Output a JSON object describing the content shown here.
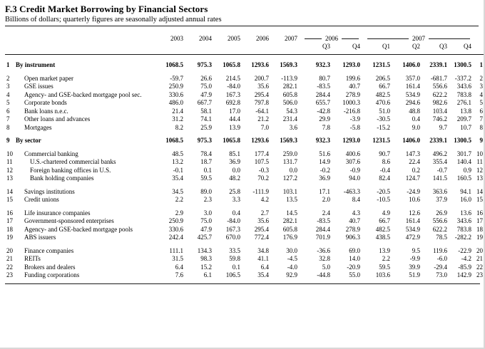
{
  "header": {
    "title": "F.3 Credit Market Borrowing by Financial Sectors",
    "subtitle": "Billions of dollars; quarterly figures are seasonally adjusted annual rates"
  },
  "table": {
    "year_columns": [
      "2003",
      "2004",
      "2005",
      "2006",
      "2007"
    ],
    "quarter_groups": [
      {
        "year": "2006",
        "quarters": [
          "Q3",
          "Q4"
        ]
      },
      {
        "year": "2007",
        "quarters": [
          "Q1",
          "Q2",
          "Q3",
          "Q4"
        ]
      }
    ],
    "rows": [
      {
        "num": 1,
        "label": "By instrument",
        "indent": 0,
        "bold": true,
        "gap_before": false,
        "values": [
          "1068.5",
          "975.3",
          "1065.8",
          "1293.6",
          "1569.3",
          "932.3",
          "1293.0",
          "1231.5",
          "1406.0",
          "2339.1",
          "1300.5"
        ]
      },
      {
        "num": 2,
        "label": "Open market paper",
        "indent": 1,
        "bold": false,
        "gap_before": true,
        "values": [
          "-59.7",
          "26.6",
          "214.5",
          "200.7",
          "-113.9",
          "80.7",
          "199.6",
          "206.5",
          "357.0",
          "-681.7",
          "-337.2"
        ]
      },
      {
        "num": 3,
        "label": "GSE issues",
        "indent": 1,
        "bold": false,
        "gap_before": false,
        "values": [
          "250.9",
          "75.0",
          "-84.0",
          "35.6",
          "282.1",
          "-83.5",
          "40.7",
          "66.7",
          "161.4",
          "556.6",
          "343.6"
        ]
      },
      {
        "num": 4,
        "label": "Agency- and GSE-backed mortgage pool sec.",
        "indent": 1,
        "bold": false,
        "gap_before": false,
        "values": [
          "330.6",
          "47.9",
          "167.3",
          "295.4",
          "605.8",
          "284.4",
          "278.9",
          "482.5",
          "534.9",
          "622.2",
          "783.8"
        ]
      },
      {
        "num": 5,
        "label": "Corporate bonds",
        "indent": 1,
        "bold": false,
        "gap_before": false,
        "values": [
          "486.0",
          "667.7",
          "692.8",
          "797.8",
          "506.0",
          "655.7",
          "1000.3",
          "470.6",
          "294.6",
          "982.6",
          "276.1"
        ]
      },
      {
        "num": 6,
        "label": "Bank loans n.e.c.",
        "indent": 1,
        "bold": false,
        "gap_before": false,
        "values": [
          "21.4",
          "58.1",
          "17.0",
          "-64.1",
          "54.3",
          "-42.8",
          "-216.8",
          "51.0",
          "48.8",
          "103.4",
          "13.8"
        ]
      },
      {
        "num": 7,
        "label": "Other loans and advances",
        "indent": 1,
        "bold": false,
        "gap_before": false,
        "values": [
          "31.2",
          "74.1",
          "44.4",
          "21.2",
          "231.4",
          "29.9",
          "-3.9",
          "-30.5",
          "0.4",
          "746.2",
          "209.7"
        ]
      },
      {
        "num": 8,
        "label": "Mortgages",
        "indent": 1,
        "bold": false,
        "gap_before": false,
        "values": [
          "8.2",
          "25.9",
          "13.9",
          "7.0",
          "3.6",
          "7.8",
          "-5.8",
          "-15.2",
          "9.0",
          "9.7",
          "10.7"
        ]
      },
      {
        "num": 9,
        "label": "By sector",
        "indent": 0,
        "bold": true,
        "gap_before": true,
        "values": [
          "1068.5",
          "975.3",
          "1065.8",
          "1293.6",
          "1569.3",
          "932.3",
          "1293.0",
          "1231.5",
          "1406.0",
          "2339.1",
          "1300.5"
        ]
      },
      {
        "num": 10,
        "label": "Commercial banking",
        "indent": 1,
        "bold": false,
        "gap_before": true,
        "values": [
          "48.5",
          "78.4",
          "85.1",
          "177.4",
          "259.0",
          "51.6",
          "400.6",
          "90.7",
          "147.3",
          "496.2",
          "301.7"
        ]
      },
      {
        "num": 11,
        "label": "U.S.-chartered commercial banks",
        "indent": 2,
        "bold": false,
        "gap_before": false,
        "values": [
          "13.2",
          "18.7",
          "36.9",
          "107.5",
          "131.7",
          "14.9",
          "307.6",
          "8.6",
          "22.4",
          "355.4",
          "140.4"
        ]
      },
      {
        "num": 12,
        "label": "Foreign banking offices in U.S.",
        "indent": 2,
        "bold": false,
        "gap_before": false,
        "values": [
          "-0.1",
          "0.1",
          "0.0",
          "-0.3",
          "0.0",
          "-0.2",
          "-0.9",
          "-0.4",
          "0.2",
          "-0.7",
          "0.9"
        ]
      },
      {
        "num": 13,
        "label": "Bank holding companies",
        "indent": 2,
        "bold": false,
        "gap_before": false,
        "values": [
          "35.4",
          "59.5",
          "48.2",
          "70.2",
          "127.2",
          "36.9",
          "94.0",
          "82.4",
          "124.7",
          "141.5",
          "160.5"
        ]
      },
      {
        "num": 14,
        "label": "Savings institutions",
        "indent": 1,
        "bold": false,
        "gap_before": true,
        "values": [
          "34.5",
          "89.0",
          "25.8",
          "-111.9",
          "103.1",
          "17.1",
          "-463.3",
          "-20.5",
          "-24.9",
          "363.6",
          "94.1"
        ]
      },
      {
        "num": 15,
        "label": "Credit unions",
        "indent": 1,
        "bold": false,
        "gap_before": false,
        "values": [
          "2.2",
          "2.3",
          "3.3",
          "4.2",
          "13.5",
          "2.0",
          "8.4",
          "-10.5",
          "10.6",
          "37.9",
          "16.0"
        ]
      },
      {
        "num": 16,
        "label": "Life insurance companies",
        "indent": 1,
        "bold": false,
        "gap_before": true,
        "values": [
          "2.9",
          "3.0",
          "0.4",
          "2.7",
          "14.5",
          "2.4",
          "4.3",
          "4.9",
          "12.6",
          "26.9",
          "13.6"
        ]
      },
      {
        "num": 17,
        "label": "Government-sponsored enterprises",
        "indent": 1,
        "bold": false,
        "gap_before": false,
        "values": [
          "250.9",
          "75.0",
          "-84.0",
          "35.6",
          "282.1",
          "-83.5",
          "40.7",
          "66.7",
          "161.4",
          "556.6",
          "343.6"
        ]
      },
      {
        "num": 18,
        "label": "Agency- and GSE-backed mortgage pools",
        "indent": 1,
        "bold": false,
        "gap_before": false,
        "values": [
          "330.6",
          "47.9",
          "167.3",
          "295.4",
          "605.8",
          "284.4",
          "278.9",
          "482.5",
          "534.9",
          "622.2",
          "783.8"
        ]
      },
      {
        "num": 19,
        "label": "ABS issuers",
        "indent": 1,
        "bold": false,
        "gap_before": false,
        "values": [
          "242.4",
          "425.7",
          "670.0",
          "772.4",
          "176.9",
          "701.9",
          "906.3",
          "438.5",
          "472.9",
          "78.5",
          "-282.2"
        ]
      },
      {
        "num": 20,
        "label": "Finance companies",
        "indent": 1,
        "bold": false,
        "gap_before": true,
        "values": [
          "111.1",
          "134.3",
          "33.5",
          "34.8",
          "30.0",
          "-36.6",
          "69.0",
          "13.9",
          "9.5",
          "119.6",
          "-22.9"
        ]
      },
      {
        "num": 21,
        "label": "REITs",
        "indent": 1,
        "bold": false,
        "gap_before": false,
        "values": [
          "31.5",
          "98.3",
          "59.8",
          "41.1",
          "-4.5",
          "32.8",
          "14.0",
          "2.2",
          "-9.9",
          "-6.0",
          "-4.2"
        ]
      },
      {
        "num": 22,
        "label": "Brokers and dealers",
        "indent": 1,
        "bold": false,
        "gap_before": false,
        "values": [
          "6.4",
          "15.2",
          "0.1",
          "6.4",
          "-4.0",
          "5.0",
          "-20.9",
          "59.5",
          "39.9",
          "-29.4",
          "-85.9"
        ]
      },
      {
        "num": 23,
        "label": "Funding corporations",
        "indent": 1,
        "bold": false,
        "gap_before": false,
        "values": [
          "7.6",
          "6.1",
          "106.5",
          "35.4",
          "92.9",
          "-44.8",
          "55.0",
          "103.6",
          "51.9",
          "73.0",
          "142.9"
        ]
      }
    ]
  }
}
